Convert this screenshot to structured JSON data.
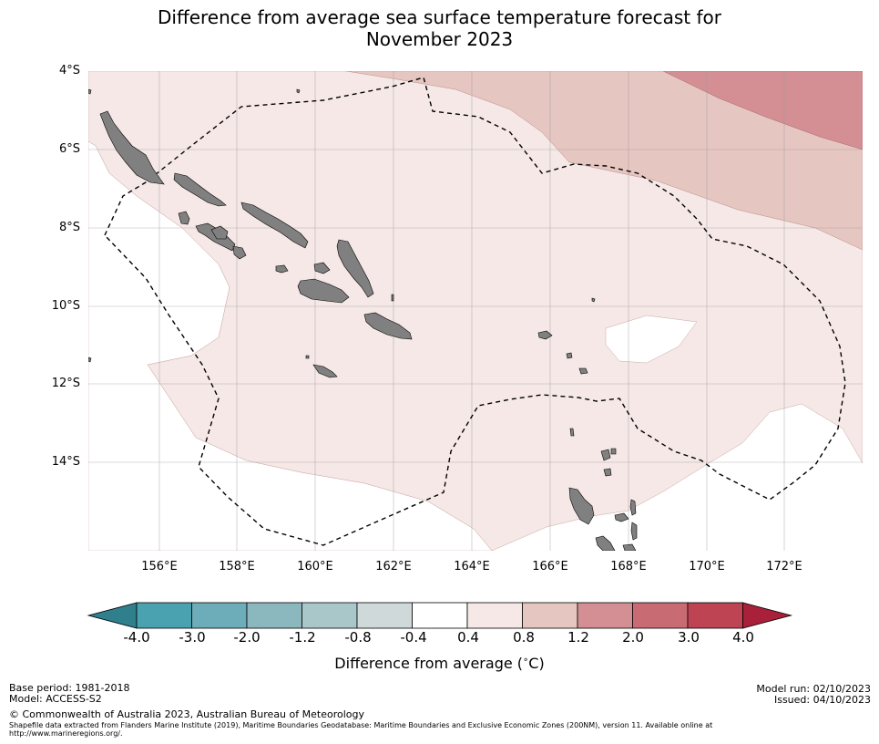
{
  "title_line1": "Difference from average sea surface temperature forecast for",
  "title_line2": "November 2023",
  "map": {
    "lat_labels": [
      "4°S",
      "6°S",
      "8°S",
      "10°S",
      "12°S",
      "14°S"
    ],
    "lon_labels": [
      "156°E",
      "158°E",
      "160°E",
      "162°E",
      "164°E",
      "166°E",
      "168°E",
      "170°E",
      "172°E"
    ],
    "colors": {
      "band_0_4_0_8": "#f5e8e6",
      "band_0_8_1_2": "#e6c6c1",
      "band_1_2_2_0": "#d38f94",
      "land": "#808080"
    }
  },
  "colorbar": {
    "ticks": [
      "-4.0",
      "-3.0",
      "-2.0",
      "-1.2",
      "-0.8",
      "-0.4",
      "0.4",
      "0.8",
      "1.2",
      "2.0",
      "3.0",
      "4.0"
    ],
    "colors": [
      "#2f7f8c",
      "#4aa2b1",
      "#6cadb9",
      "#8ab8be",
      "#a9c6c9",
      "#cfd9da",
      "#ffffff",
      "#f5e8e6",
      "#e6c6c1",
      "#d38f94",
      "#c96b72",
      "#be4453",
      "#a8203a"
    ],
    "label": "Difference from average (",
    "label_degree": "∘",
    "label_unit": "C)"
  },
  "footer": {
    "base_period": "Base period: 1981-2018",
    "model": "Model: ACCESS-S2",
    "copyright": "© Commonwealth of Australia 2023, Australian Bureau of Meteorology",
    "shapefile_line1": "Shapefile data extracted from Flanders Marine Institute (2019), Maritime Boundaries Geodatabase: Maritime Boundaries and Exclusive Economic Zones (200NM), version 11. Available online at",
    "shapefile_line2": "http://www.marineregions.org/.",
    "model_run": "Model run: 02/10/2023",
    "issued": "Issued: 04/10/2023"
  }
}
